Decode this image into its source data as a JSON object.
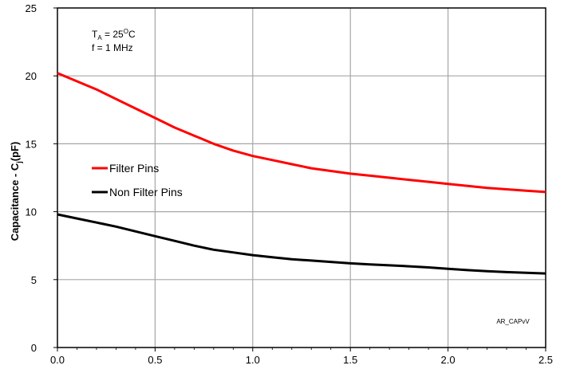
{
  "chart_data": {
    "type": "line",
    "title": "",
    "xlabel": "",
    "ylabel_main": "Capacitance - C",
    "ylabel_sub": "j",
    "ylabel_tail": "(pF)",
    "xlim": [
      0,
      2.5
    ],
    "ylim": [
      0,
      25
    ],
    "x_ticks": [
      "0.0",
      "0.5",
      "1.0",
      "1.5",
      "2.0",
      "2.5"
    ],
    "y_ticks": [
      "0",
      "5",
      "10",
      "15",
      "20",
      "25"
    ],
    "grid": true,
    "legend_position": "middle-left",
    "annotation": {
      "line1_main": "T",
      "line1_sub": "A",
      "line1_eq": " = 25",
      "line1_sup": "O",
      "line1_unit": "C",
      "line2": "f = 1 MHz"
    },
    "watermark": "AR_CAPvV",
    "series": [
      {
        "name": "Filter Pins",
        "color": "#ff0000",
        "x": [
          0.0,
          0.1,
          0.2,
          0.3,
          0.4,
          0.5,
          0.6,
          0.7,
          0.8,
          0.9,
          1.0,
          1.1,
          1.2,
          1.3,
          1.4,
          1.5,
          1.6,
          1.7,
          1.8,
          1.9,
          2.0,
          2.1,
          2.2,
          2.3,
          2.4,
          2.5
        ],
        "y": [
          20.2,
          19.6,
          19.0,
          18.3,
          17.6,
          16.9,
          16.2,
          15.6,
          15.0,
          14.5,
          14.1,
          13.8,
          13.5,
          13.2,
          13.0,
          12.8,
          12.65,
          12.5,
          12.35,
          12.2,
          12.05,
          11.9,
          11.75,
          11.65,
          11.55,
          11.45
        ],
        "linewidth": 3
      },
      {
        "name": "Non Filter Pins",
        "color": "#000000",
        "x": [
          0.0,
          0.1,
          0.2,
          0.3,
          0.4,
          0.5,
          0.6,
          0.7,
          0.8,
          0.9,
          1.0,
          1.1,
          1.2,
          1.3,
          1.4,
          1.5,
          1.6,
          1.7,
          1.8,
          1.9,
          2.0,
          2.1,
          2.2,
          2.3,
          2.4,
          2.5
        ],
        "y": [
          9.8,
          9.5,
          9.2,
          8.9,
          8.55,
          8.2,
          7.85,
          7.5,
          7.2,
          7.0,
          6.8,
          6.65,
          6.5,
          6.4,
          6.3,
          6.2,
          6.12,
          6.05,
          5.98,
          5.9,
          5.8,
          5.7,
          5.62,
          5.55,
          5.5,
          5.45
        ],
        "linewidth": 3
      }
    ]
  }
}
